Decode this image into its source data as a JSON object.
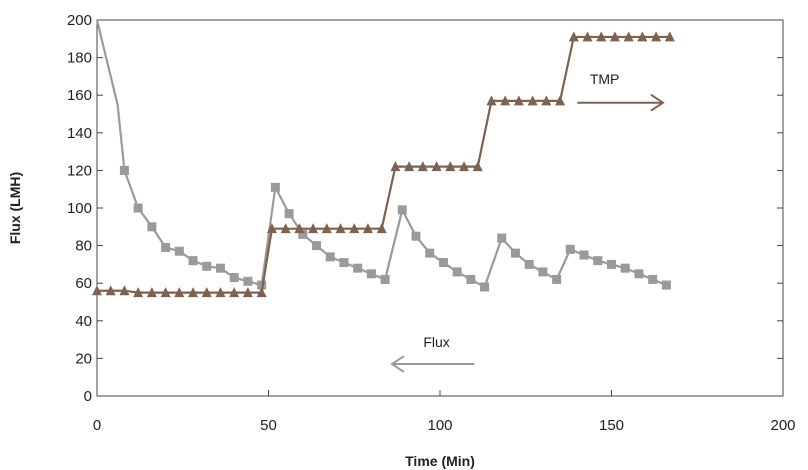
{
  "chart_data": {
    "type": "line",
    "title": "",
    "xlabel": "Time (Min)",
    "ylabel": "Flux (LMH)",
    "xlim": [
      0,
      200
    ],
    "ylim": [
      0,
      200
    ],
    "xticks": [
      "0",
      "50",
      "100",
      "150",
      "200"
    ],
    "yticks": [
      "0",
      "20",
      "40",
      "60",
      "80",
      "100",
      "120",
      "140",
      "160",
      "180",
      "200"
    ],
    "grid": false,
    "series": [
      {
        "name": "Flux",
        "marker": "square",
        "color": "#9a9a9a",
        "x": [
          0,
          2,
          4,
          6,
          8,
          12,
          16,
          20,
          24,
          28,
          32,
          36,
          40,
          44,
          48,
          52,
          56,
          60,
          64,
          68,
          72,
          76,
          80,
          84,
          89,
          93,
          97,
          101,
          105,
          109,
          113,
          118,
          122,
          126,
          130,
          134,
          138,
          142,
          146,
          150,
          154,
          158,
          162,
          166
        ],
        "y": [
          200,
          185,
          170,
          155,
          120,
          100,
          90,
          79,
          77,
          72,
          69,
          68,
          63,
          61,
          59,
          111,
          97,
          86,
          80,
          74,
          71,
          68,
          65,
          62,
          99,
          85,
          76,
          71,
          66,
          62,
          58,
          84,
          76,
          70,
          66,
          62,
          78,
          75,
          72,
          70,
          68,
          65,
          62,
          59
        ],
        "markers_at": [
          8,
          12,
          16,
          20,
          24,
          28,
          32,
          36,
          40,
          44,
          48,
          52,
          56,
          60,
          64,
          68,
          72,
          76,
          80,
          84,
          89,
          93,
          97,
          101,
          105,
          109,
          113,
          118,
          122,
          126,
          130,
          134,
          138,
          142,
          146,
          150,
          154,
          158,
          162,
          166
        ]
      },
      {
        "name": "TMP",
        "marker": "triangle",
        "color": "#7d6252",
        "x": [
          0,
          4,
          8,
          12,
          16,
          20,
          24,
          28,
          32,
          36,
          40,
          44,
          48,
          51,
          55,
          59,
          63,
          67,
          71,
          75,
          79,
          83,
          87,
          91,
          95,
          99,
          103,
          107,
          111,
          115,
          119,
          123,
          127,
          131,
          135,
          139,
          143,
          147,
          151,
          155,
          159,
          163,
          167
        ],
        "y": [
          56,
          56,
          56,
          55,
          55,
          55,
          55,
          55,
          55,
          55,
          55,
          55,
          55,
          89,
          89,
          89,
          89,
          89,
          89,
          89,
          89,
          89,
          122,
          122,
          122,
          122,
          122,
          122,
          122,
          157,
          157,
          157,
          157,
          157,
          157,
          191,
          191,
          191,
          191,
          191,
          191,
          191,
          191
        ]
      }
    ],
    "annotations": [
      {
        "text": "TMP",
        "arrow": "right",
        "color": "#7d6252",
        "text_x": 148,
        "text_y": 166,
        "arrow_x": [
          140,
          165
        ],
        "arrow_y": 156
      },
      {
        "text": "Flux",
        "arrow": "left",
        "color": "#9a9a9a",
        "text_x": 99,
        "text_y": 26,
        "arrow_x": [
          110,
          86
        ],
        "arrow_y": 17
      }
    ]
  }
}
